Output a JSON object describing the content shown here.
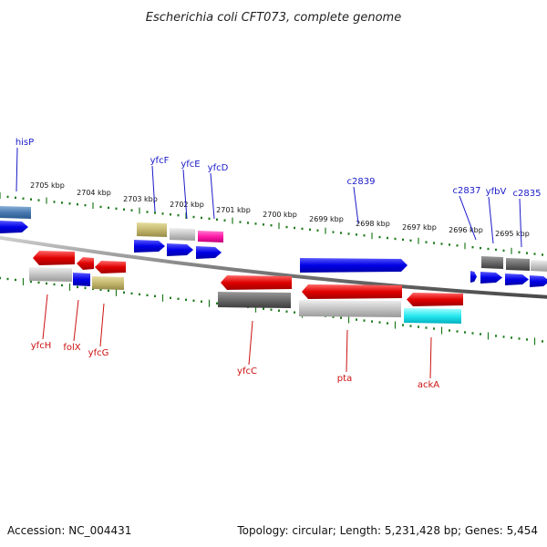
{
  "title": "Escherichia coli CFT073, complete genome",
  "footer": {
    "accession": "Accession: NC_004431",
    "summary": "Topology: circular; Length: 5,231,428 bp; Genes: 5,454"
  },
  "colors": {
    "backbone": "#8a8a8a",
    "tick": "#1e7a1e",
    "label_top": "#1a1ac8",
    "label_bottom": "#cc1010"
  },
  "kbp_labels": [
    "2705 kbp",
    "2704 kbp",
    "2703 kbp",
    "2702 kbp",
    "2701 kbp",
    "2700 kbp",
    "2699 kbp",
    "2698 kbp",
    "2697 kbp",
    "2696 kbp",
    "2695 kbp"
  ],
  "genes_top": [
    "hisP",
    "yfcF",
    "yfcE",
    "yfcD",
    "c2839",
    "c2837",
    "yfbV",
    "c2835"
  ],
  "genes_bottom": [
    "yfcH",
    "folX",
    "yfcG",
    "yfcC",
    "pta",
    "ackA"
  ]
}
